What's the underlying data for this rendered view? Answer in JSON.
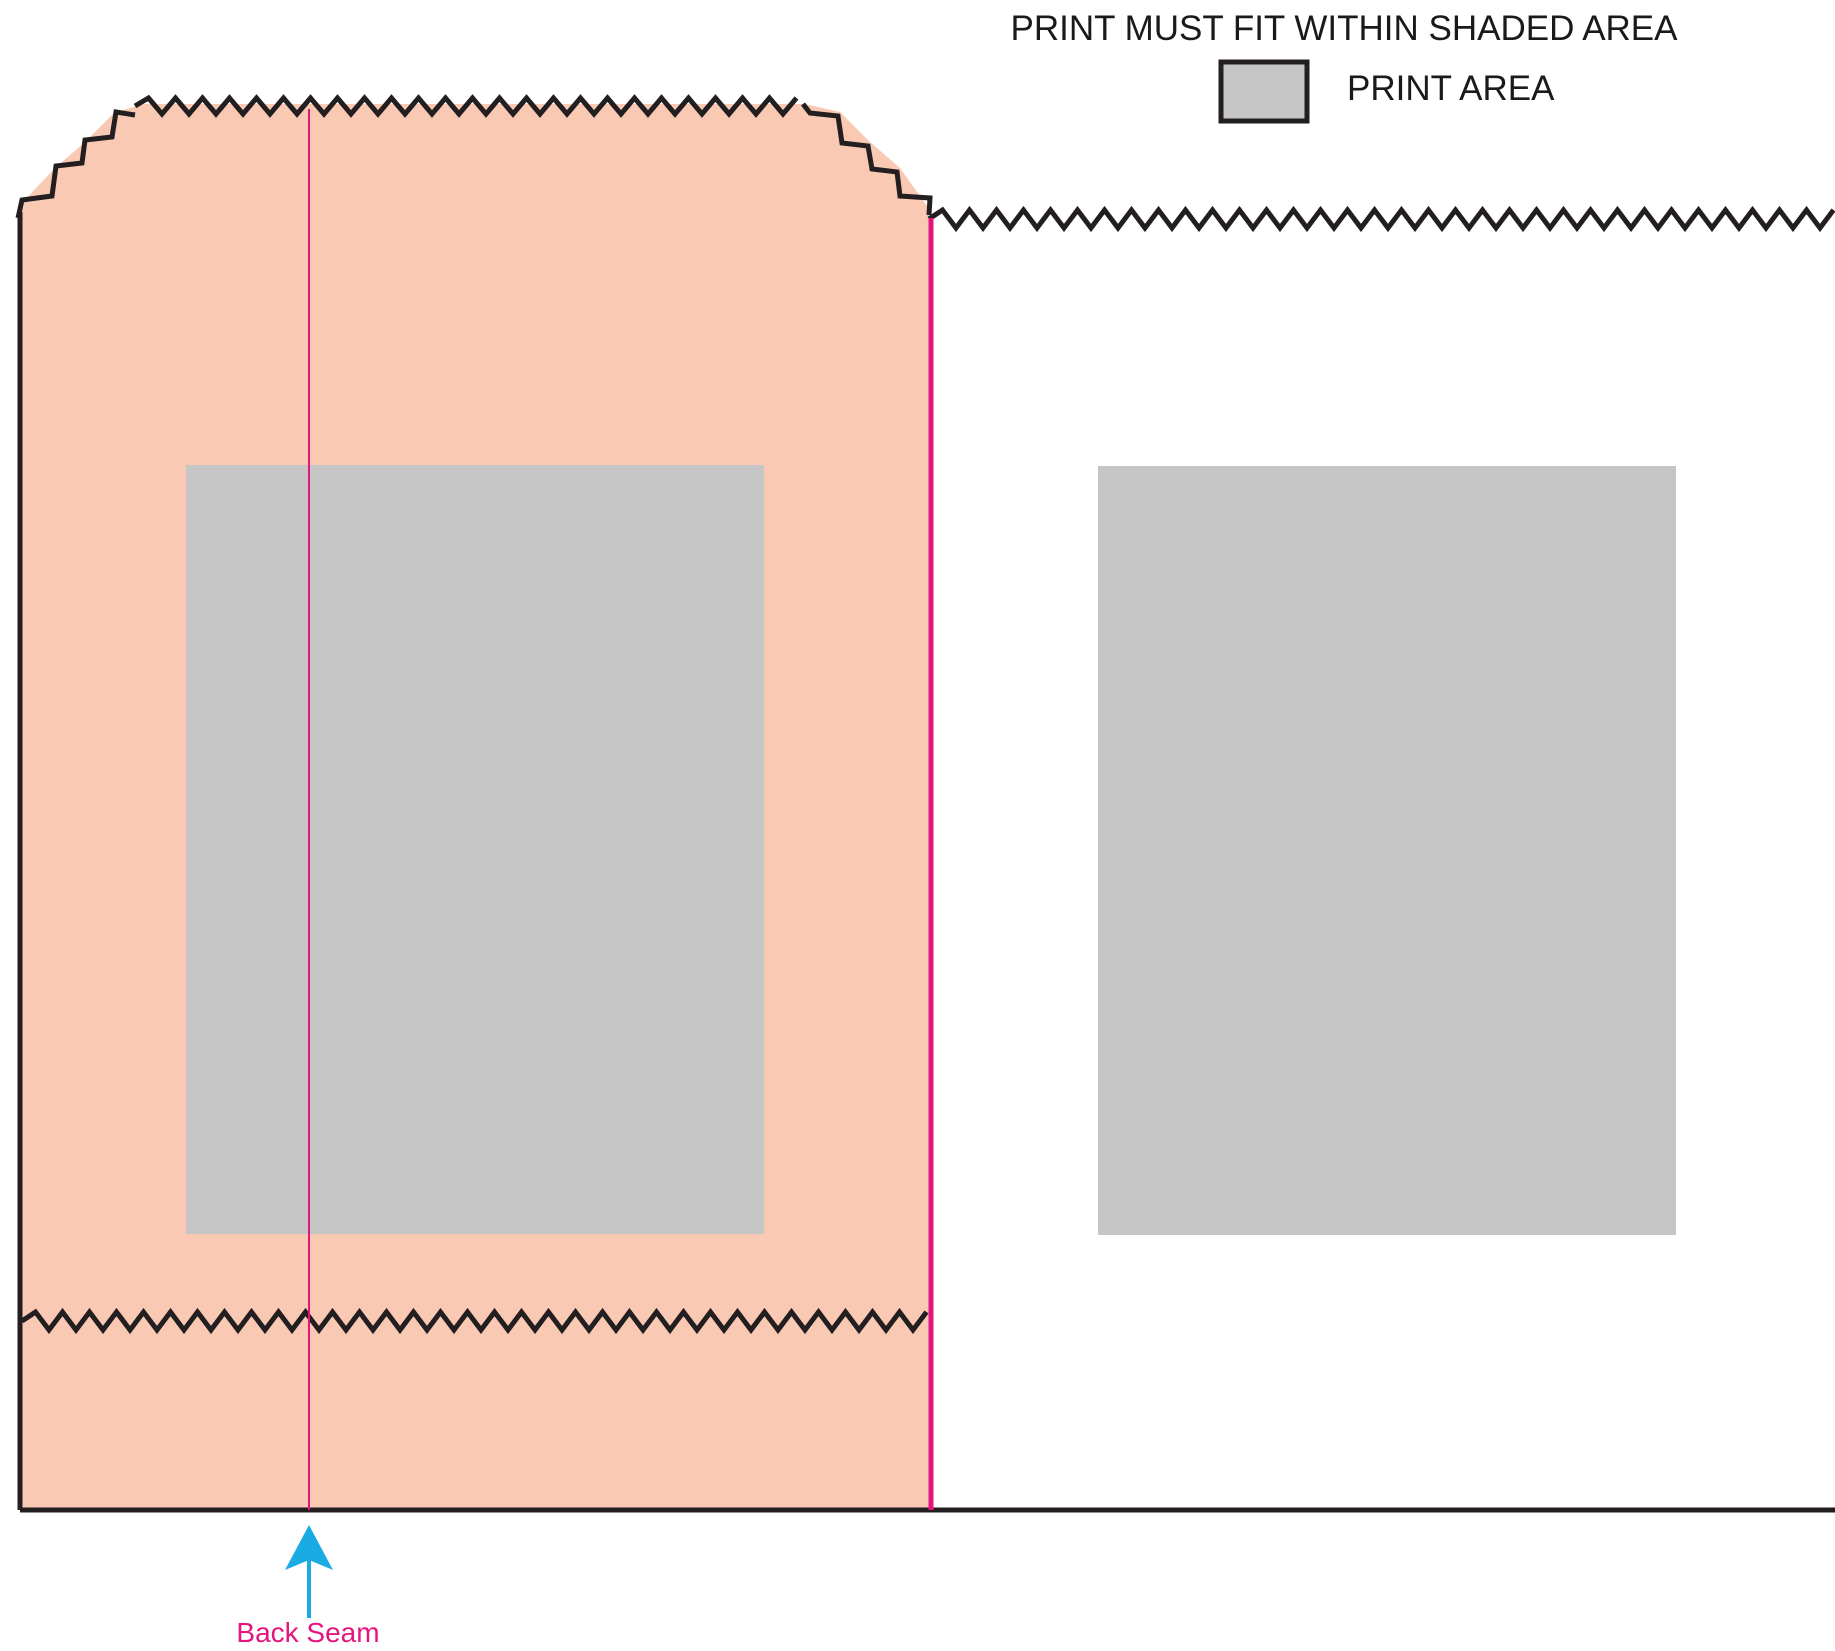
{
  "header": {
    "instruction": "PRINT MUST FIT WITHIN SHADED AREA",
    "legend_label": "PRINT AREA"
  },
  "annotations": {
    "back_seam": "Back Seam"
  },
  "colors": {
    "bag_fill": "#f9c9b4",
    "print_area": "#c6c6c6",
    "outline": "#231f20",
    "seam_line": "#e5157e",
    "arrow": "#1aabe3"
  }
}
